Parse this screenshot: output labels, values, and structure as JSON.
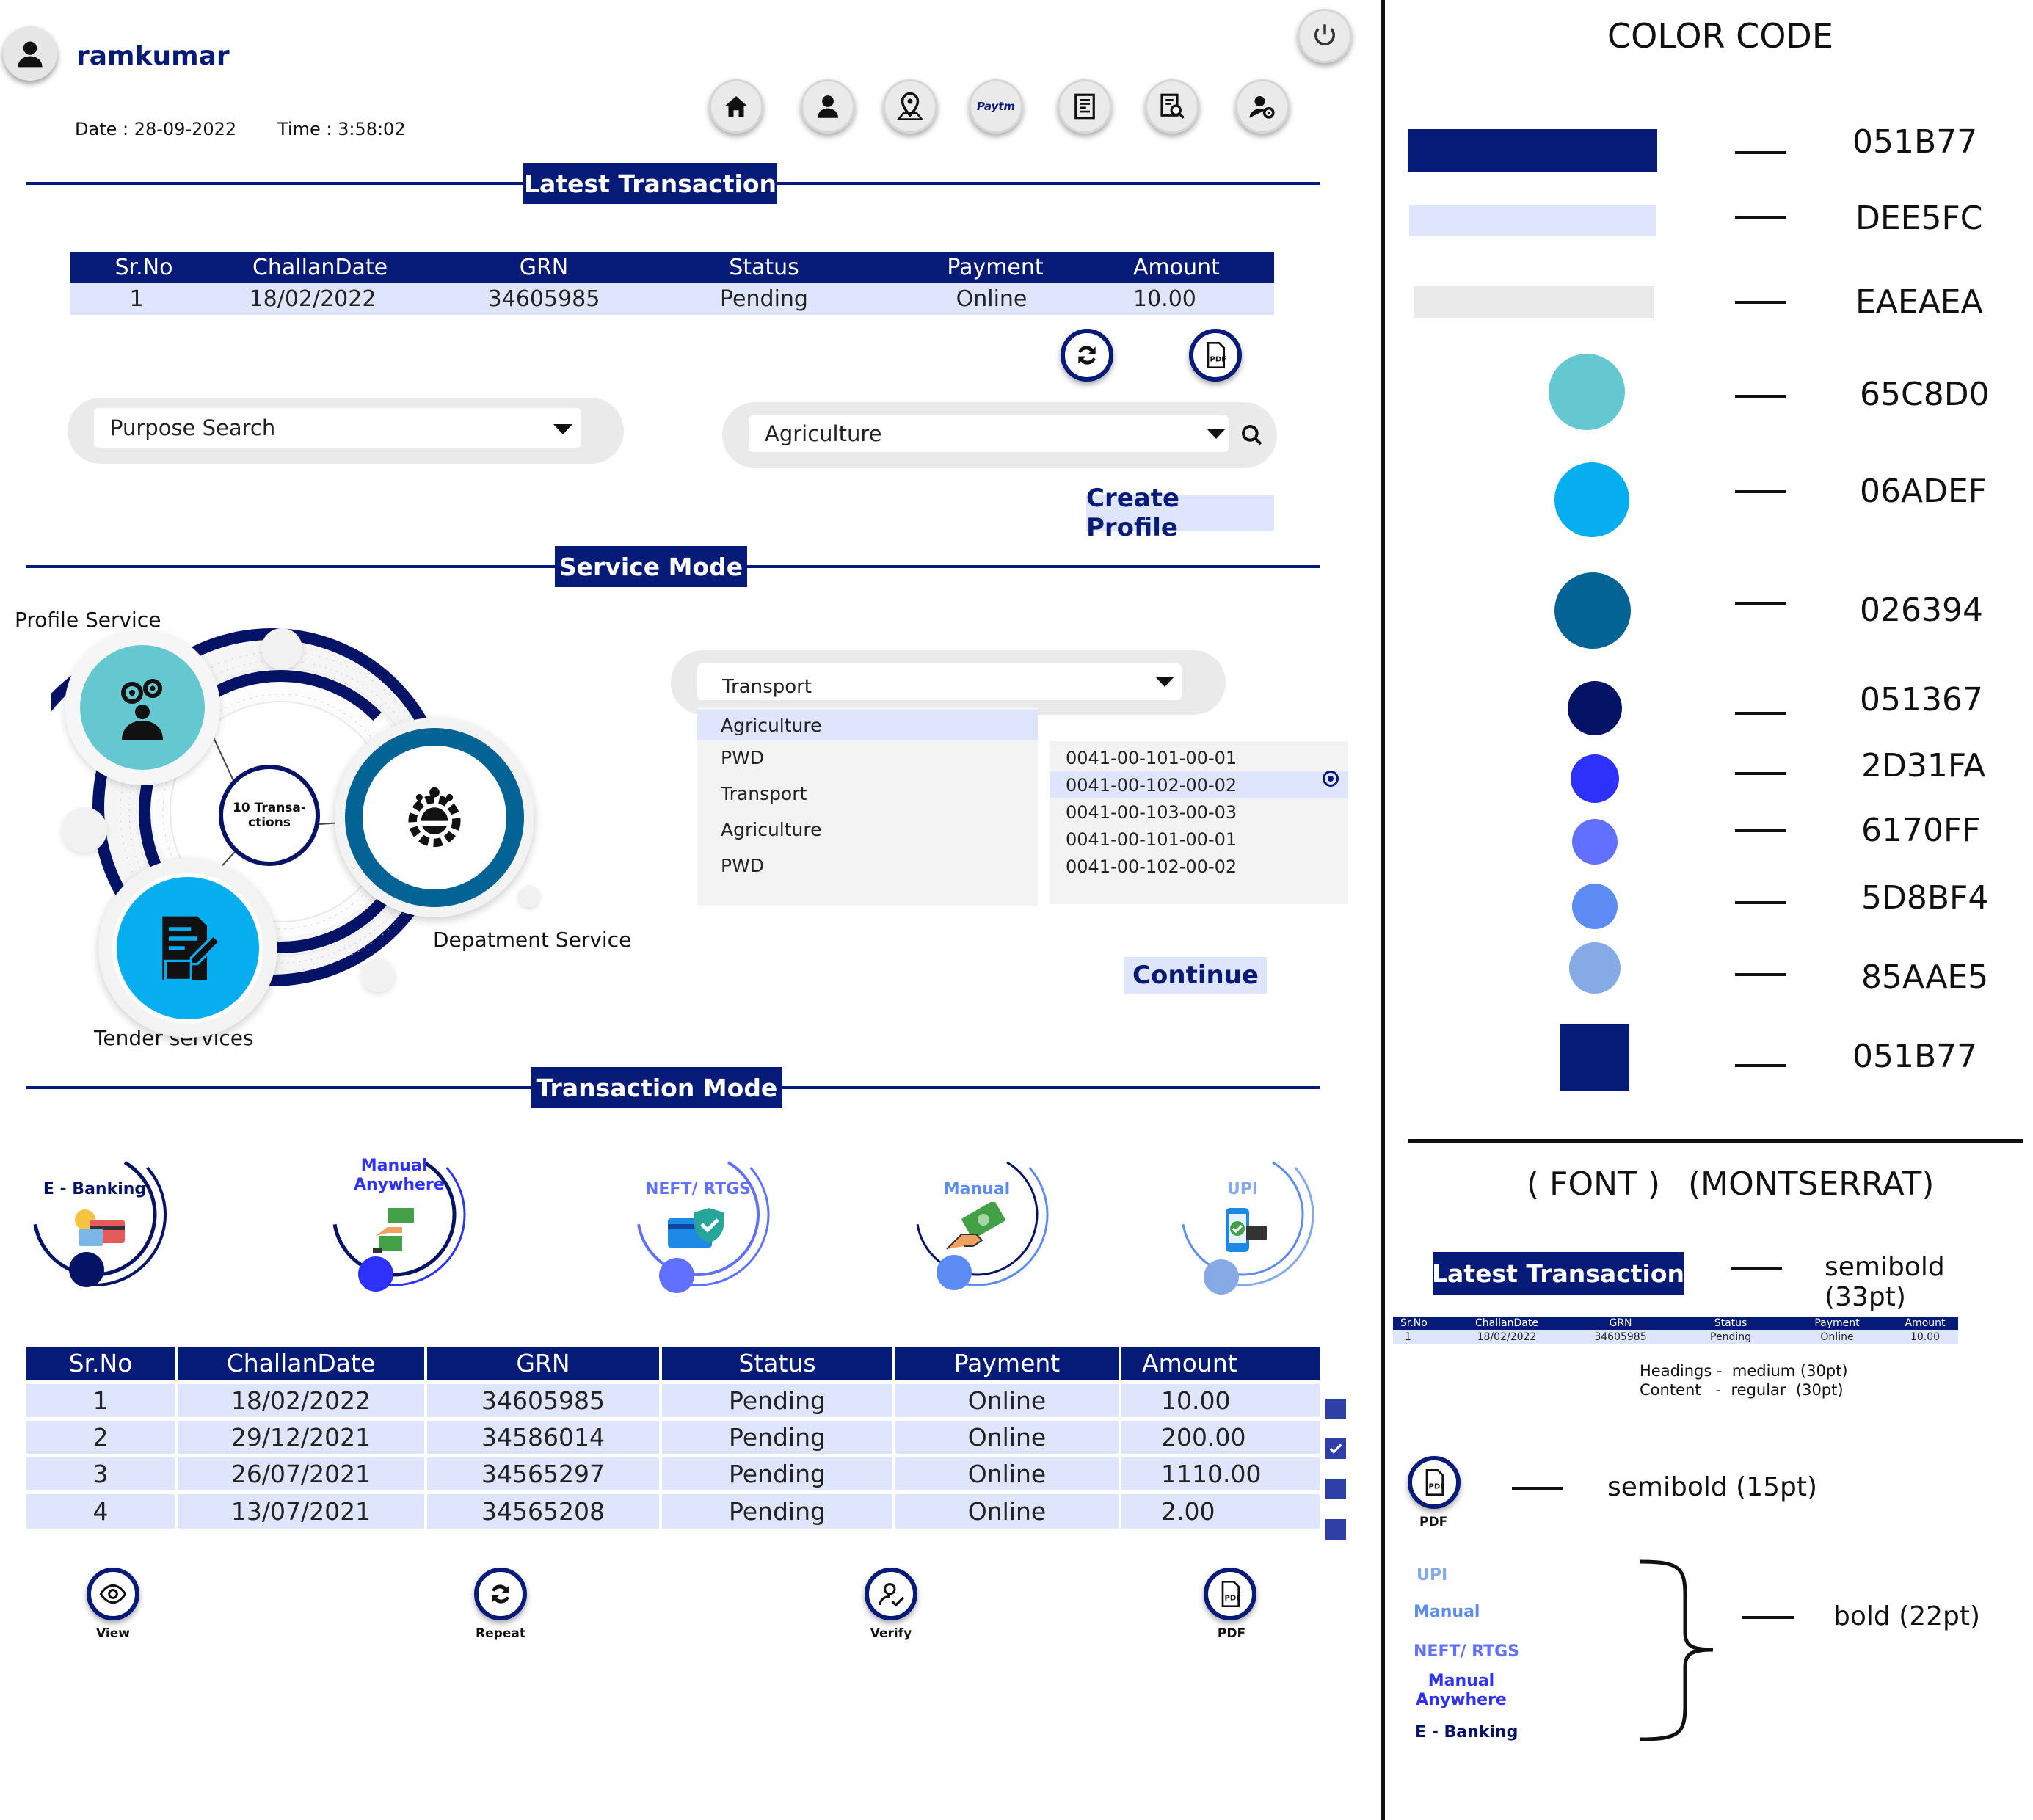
{
  "user": {
    "name": "ramkumar"
  },
  "header": {
    "date": "Date : 28-09-2022",
    "time": "Time : 3:58:02"
  },
  "top_nav": [
    {
      "icon": "home-icon"
    },
    {
      "icon": "user-icon"
    },
    {
      "icon": "location-icon"
    },
    {
      "icon": "paytm-icon",
      "label": "Paytm"
    },
    {
      "icon": "receipt-icon"
    },
    {
      "icon": "search-document-icon"
    },
    {
      "icon": "user-settings-icon"
    }
  ],
  "latest": {
    "title": "Latest Transaction",
    "headers": [
      "Sr.No",
      "ChallanDate",
      "GRN",
      "Status",
      "Payment",
      "Amount"
    ],
    "row": [
      "1",
      "18/02/2022",
      "34605985",
      "Pending",
      "Online",
      "10.00"
    ]
  },
  "search": {
    "purpose_placeholder": "Purpose Search",
    "category_value": "Agriculture",
    "create_profile": "Create Profile"
  },
  "service_mode": {
    "title": "Service Mode",
    "profile_label": "Profile Service",
    "department_label": "Depatment Service",
    "tender_label": "Tender services",
    "center_label_1": "10 Transa-",
    "center_label_2": "ctions",
    "dropdown_value": "Transport",
    "dropdown_options": [
      "Agriculture",
      "PWD",
      "Transport",
      "Agriculture",
      "PWD"
    ],
    "codes": [
      "0041-00-101-00-01",
      "0041-00-102-00-02",
      "0041-00-103-00-03",
      "0041-00-101-00-01",
      "0041-00-102-00-02"
    ],
    "continue": "Continue"
  },
  "transaction_mode": {
    "title": "Transaction Mode",
    "modes": [
      {
        "label": "E - Banking",
        "color": "#051367"
      },
      {
        "label": "Manual Anywhere",
        "color": "#2D31FA"
      },
      {
        "label": "NEFT/ RTGS",
        "color": "#6170FF"
      },
      {
        "label": "Manual",
        "color": "#5D8BF4"
      },
      {
        "label": "UPI",
        "color": "#85AAE5"
      }
    ]
  },
  "history": {
    "headers": [
      "Sr.No",
      "ChallanDate",
      "GRN",
      "Status",
      "Payment",
      "Amount"
    ],
    "rows": [
      [
        "1",
        "18/02/2022",
        "34605985",
        "Pending",
        "Online",
        "10.00"
      ],
      [
        "2",
        "29/12/2021",
        "34586014",
        "Pending",
        "Online",
        "200.00"
      ],
      [
        "3",
        "26/07/2021",
        "34565297",
        "Pending",
        "Online",
        "1110.00"
      ],
      [
        "4",
        "13/07/2021",
        "34565208",
        "Pending",
        "Online",
        "2.00"
      ]
    ],
    "checked": [
      false,
      true,
      false,
      false
    ],
    "actions": [
      "View",
      "Repeat",
      "Verify",
      "PDF"
    ]
  },
  "style_guide": {
    "color_title": "COLOR CODE",
    "colors": [
      {
        "hex": "#051B77",
        "label": "051B77",
        "shape": "rect"
      },
      {
        "hex": "#DEE5FC",
        "label": "DEE5FC",
        "shape": "rect"
      },
      {
        "hex": "#EAEAEA",
        "label": "EAEAEA",
        "shape": "rect"
      },
      {
        "hex": "#65C8D0",
        "label": "65C8D0",
        "shape": "circle"
      },
      {
        "hex": "#06ADEF",
        "label": "06ADEF",
        "shape": "circle"
      },
      {
        "hex": "#026394",
        "label": "026394",
        "shape": "circle"
      },
      {
        "hex": "#051367",
        "label": "051367",
        "shape": "circle"
      },
      {
        "hex": "#2D31FA",
        "label": "2D31FA",
        "shape": "circle"
      },
      {
        "hex": "#6170FF",
        "label": "6170FF",
        "shape": "circle"
      },
      {
        "hex": "#5D8BF4",
        "label": "5D8BF4",
        "shape": "circle"
      },
      {
        "hex": "#85AAE5",
        "label": "85AAE5",
        "shape": "circle"
      },
      {
        "hex": "#051B77",
        "label": "051B77",
        "shape": "square"
      }
    ],
    "font_label": "( FONT )",
    "font_name": "(MONTSERRAT)",
    "sample_title": "Latest Transaction",
    "sample_title_weight": "semibold (33pt)",
    "mini_headers": [
      "Sr.No",
      "ChallanDate",
      "GRN",
      "Status",
      "Payment",
      "Amount"
    ],
    "mini_row": [
      "1",
      "18/02/2022",
      "34605985",
      "Pending",
      "Online",
      "10.00"
    ],
    "note_headings": "Headings -  medium (30pt)",
    "note_content": "Content   -  regular  (30pt)",
    "pdf_label": "PDF",
    "pdf_weight": "semibold (15pt)",
    "mode_labels": [
      "UPI",
      "Manual",
      "NEFT/ RTGS",
      "Manual Anywhere",
      "E - Banking"
    ],
    "mode_weight": "bold (22pt)"
  }
}
